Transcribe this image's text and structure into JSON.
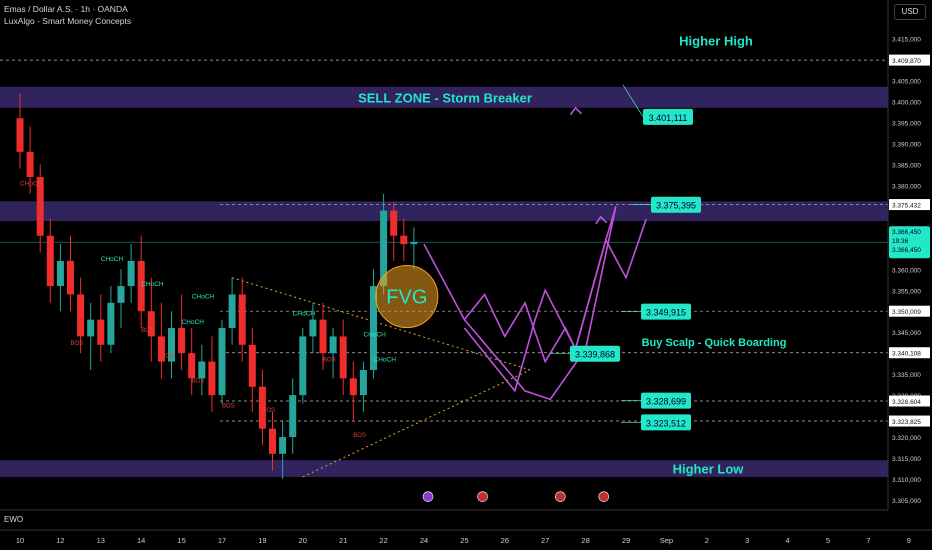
{
  "header": {
    "title": "Emas / Dollar A.S. · 1h · OANDA",
    "indicator": "LuxAlgo - Smart Money Concepts",
    "currency": "USD"
  },
  "lower_pane": {
    "label": "EWO"
  },
  "colors": {
    "background": "#000000",
    "candle_up": "#26a69a",
    "candle_down": "#ef2d2d",
    "zone": "#3a2a6e",
    "projection": "#c050e0",
    "trendline": "#e8a32a",
    "callout": "#22e8c8",
    "fvg": "#f0a020"
  },
  "chart_data": {
    "type": "candlestick",
    "title": "Emas / Dollar A.S. · 1h · OANDA",
    "y_axis": {
      "ylim": [
        3.305,
        3.418
      ],
      "ticks": [
        "3.415,000",
        "3.405,000",
        "3.400,000",
        "3.395,000",
        "3.390,000",
        "3.385,000",
        "3.380,000",
        "3.360,000",
        "3.355,000",
        "3.345,000",
        "3.335,000",
        "3.330,000",
        "3.320,000",
        "3.315,000",
        "3.310,000",
        "3.305,000"
      ],
      "tick_values": [
        3.415,
        3.405,
        3.4,
        3.395,
        3.39,
        3.385,
        3.38,
        3.36,
        3.355,
        3.345,
        3.335,
        3.33,
        3.32,
        3.315,
        3.31,
        3.305
      ],
      "price_labels": [
        {
          "text": "3.409,870",
          "value": 3.40987
        },
        {
          "text": "3.375,432",
          "value": 3.375432
        },
        {
          "text": "3.350,009",
          "value": 3.350009
        },
        {
          "text": "3.340,108",
          "value": 3.340108
        },
        {
          "text": "3.328,604",
          "value": 3.328604
        },
        {
          "text": "3.323,825",
          "value": 3.323825
        }
      ],
      "current_price": {
        "lines": [
          "3.366,450",
          "19:36",
          "3.366,450"
        ],
        "value": 3.36645
      }
    },
    "x_axis": {
      "labels": [
        "10",
        "12",
        "13",
        "14",
        "15",
        "17",
        "19",
        "20",
        "21",
        "22",
        "24",
        "25",
        "26",
        "27",
        "28",
        "29",
        "Sep",
        "2",
        "3",
        "4",
        "5",
        "7",
        "9"
      ],
      "positions": [
        0,
        4,
        8,
        12,
        16,
        20,
        24,
        28,
        32,
        36,
        40,
        44,
        48,
        52,
        56,
        60,
        64,
        68,
        72,
        76,
        80,
        84,
        88
      ]
    },
    "candles": [
      [
        3.396,
        3.402,
        3.384,
        3.388
      ],
      [
        3.388,
        3.394,
        3.378,
        3.382
      ],
      [
        3.382,
        3.385,
        3.364,
        3.368
      ],
      [
        3.368,
        3.372,
        3.352,
        3.356
      ],
      [
        3.356,
        3.366,
        3.35,
        3.362
      ],
      [
        3.362,
        3.368,
        3.35,
        3.354
      ],
      [
        3.354,
        3.358,
        3.34,
        3.344
      ],
      [
        3.344,
        3.352,
        3.336,
        3.348
      ],
      [
        3.348,
        3.354,
        3.338,
        3.342
      ],
      [
        3.342,
        3.356,
        3.34,
        3.352
      ],
      [
        3.352,
        3.36,
        3.346,
        3.356
      ],
      [
        3.356,
        3.366,
        3.352,
        3.362
      ],
      [
        3.362,
        3.368,
        3.346,
        3.35
      ],
      [
        3.35,
        3.358,
        3.338,
        3.344
      ],
      [
        3.344,
        3.352,
        3.334,
        3.338
      ],
      [
        3.338,
        3.35,
        3.334,
        3.346
      ],
      [
        3.346,
        3.354,
        3.336,
        3.34
      ],
      [
        3.34,
        3.346,
        3.33,
        3.334
      ],
      [
        3.334,
        3.342,
        3.33,
        3.338
      ],
      [
        3.338,
        3.344,
        3.326,
        3.33
      ],
      [
        3.33,
        3.348,
        3.328,
        3.346
      ],
      [
        3.346,
        3.358,
        3.342,
        3.354
      ],
      [
        3.354,
        3.358,
        3.338,
        3.342
      ],
      [
        3.342,
        3.346,
        3.326,
        3.332
      ],
      [
        3.332,
        3.336,
        3.318,
        3.322
      ],
      [
        3.322,
        3.326,
        3.312,
        3.316
      ],
      [
        3.316,
        3.324,
        3.31,
        3.32
      ],
      [
        3.32,
        3.334,
        3.316,
        3.33
      ],
      [
        3.33,
        3.346,
        3.328,
        3.344
      ],
      [
        3.344,
        3.352,
        3.34,
        3.348
      ],
      [
        3.348,
        3.352,
        3.336,
        3.34
      ],
      [
        3.34,
        3.346,
        3.334,
        3.344
      ],
      [
        3.344,
        3.348,
        3.33,
        3.334
      ],
      [
        3.334,
        3.338,
        3.324,
        3.33
      ],
      [
        3.33,
        3.338,
        3.326,
        3.336
      ],
      [
        3.336,
        3.36,
        3.334,
        3.356
      ],
      [
        3.356,
        3.378,
        3.354,
        3.374
      ],
      [
        3.374,
        3.376,
        3.362,
        3.368
      ],
      [
        3.368,
        3.372,
        3.362,
        3.366
      ],
      [
        3.366,
        3.37,
        3.36,
        3.3665
      ]
    ],
    "candle_x_start": 0,
    "candle_x_end": 39,
    "zones": [
      {
        "label": "SELL ZONE - Storm Breaker",
        "y_from": 3.3985,
        "y_to": 3.4035
      },
      {
        "label": "",
        "y_from": 3.3715,
        "y_to": 3.3762
      },
      {
        "label": "Higher Low",
        "y_from": 3.3105,
        "y_to": 3.3145
      }
    ],
    "annotations": {
      "higher_high": "Higher High",
      "buy_scalp": "Buy Scalp - Quick Boarding",
      "fvg": "FVG",
      "structure_labels": [
        "CHoCH",
        "CHoCH",
        "CHoCH",
        "CHoCH",
        "CHoCH",
        "CHoCH",
        "CHoCH",
        "CHoCH",
        "BOS",
        "BOS",
        "BOS",
        "BOS",
        "BOS",
        "BOS",
        "BOS",
        "BOS"
      ]
    },
    "callouts": [
      {
        "text": "3.401,111",
        "value": 3.401111
      },
      {
        "text": "3.375,395",
        "value": 3.375395
      },
      {
        "text": "3.349,915",
        "value": 3.349915
      },
      {
        "text": "3.339,868",
        "value": 3.339868
      },
      {
        "text": "3.328,699",
        "value": 3.328699
      },
      {
        "text": "3.323,512",
        "value": 3.323512
      }
    ],
    "projection_path": [
      [
        40,
        3.366
      ],
      [
        44,
        3.348
      ],
      [
        46,
        3.354
      ],
      [
        48,
        3.344
      ],
      [
        50,
        3.352
      ],
      [
        52,
        3.338
      ],
      [
        54,
        3.346
      ],
      [
        55,
        3.341
      ],
      [
        58,
        3.367
      ],
      [
        60,
        3.358
      ],
      [
        62,
        3.372
      ]
    ],
    "projection_path_2": [
      [
        44,
        3.346
      ],
      [
        49,
        3.331
      ],
      [
        51,
        3.348
      ],
      [
        52,
        3.355
      ],
      [
        55,
        3.341
      ],
      [
        58,
        3.367
      ],
      [
        59,
        3.375
      ]
    ],
    "grid": false,
    "legend": "none"
  }
}
